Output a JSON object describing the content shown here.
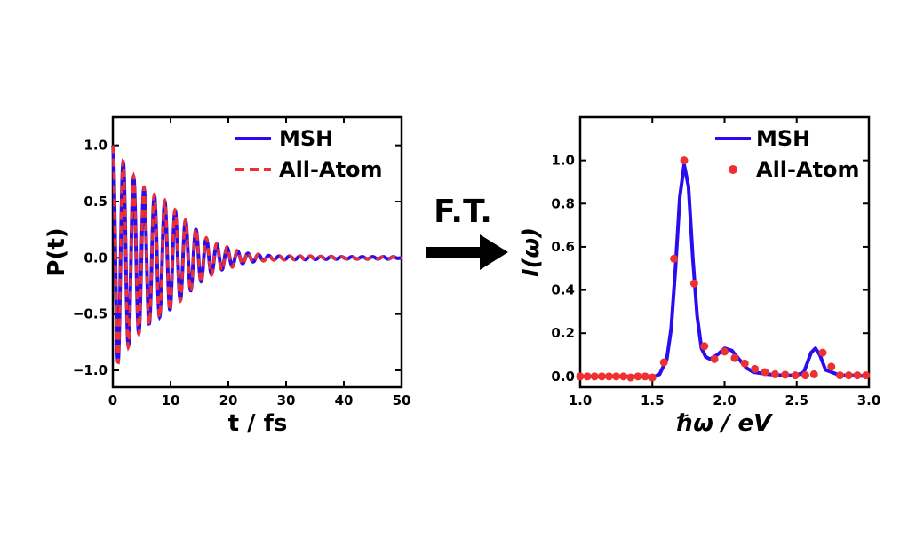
{
  "chart_data": [
    {
      "type": "line",
      "xlabel": "t / fs",
      "ylabel": "P(t)",
      "xlim": [
        0,
        50
      ],
      "ylim": [
        -1.15,
        1.25
      ],
      "xticks": [
        0,
        10,
        20,
        30,
        40,
        50
      ],
      "xtick_labels": [
        "0",
        "10",
        "20",
        "30",
        "40",
        "50"
      ],
      "yticks": [
        -1.0,
        -0.5,
        0.0,
        0.5,
        1.0
      ],
      "ytick_labels": [
        "−1.0",
        "−0.5",
        "0.0",
        "0.5",
        "1.0"
      ],
      "legend_position": "top-right",
      "signal_model": {
        "period_fs": 1.8,
        "decay_time_fs": 11.0,
        "beat_period_fs": 45.0
      },
      "series": [
        {
          "name": "MSH",
          "style": "solid",
          "color": "#2a0cf0",
          "x": [
            0,
            1.8,
            3.6,
            5.4,
            7.2,
            9.0,
            10.8,
            12.6,
            14.4,
            16.2,
            18.0,
            19.8,
            21.6,
            23.4,
            25.2,
            27.0,
            28.8,
            30.6,
            32.4,
            34.2,
            36.0,
            37.8,
            39.6,
            41.4,
            43.2,
            45.0,
            46.8,
            48.6,
            50.0
          ],
          "y": [
            1.0,
            0.85,
            0.72,
            0.62,
            0.55,
            0.5,
            0.42,
            0.33,
            0.25,
            0.17,
            0.12,
            0.09,
            0.06,
            0.04,
            0.03,
            0.02,
            0.015,
            0.015,
            0.015,
            0.015,
            0.012,
            0.012,
            0.01,
            0.01,
            0.01,
            0.01,
            0.01,
            0.01,
            0.0
          ]
        },
        {
          "name": "All-Atom",
          "style": "dashed",
          "color": "#f03030",
          "x": [
            0,
            1.8,
            3.6,
            5.4,
            7.2,
            9.0,
            10.8,
            12.6,
            14.4,
            16.2,
            18.0,
            19.8,
            21.6,
            23.4,
            25.2,
            27.0,
            28.8,
            30.6,
            32.4,
            34.2,
            36.0,
            37.8,
            39.6,
            41.4,
            43.2,
            45.0,
            46.8,
            48.6,
            50.0
          ],
          "y": [
            1.0,
            0.86,
            0.73,
            0.63,
            0.56,
            0.51,
            0.43,
            0.34,
            0.26,
            0.18,
            0.13,
            0.1,
            0.07,
            0.05,
            0.035,
            0.025,
            0.02,
            0.02,
            0.02,
            0.02,
            0.015,
            0.015,
            0.012,
            0.012,
            0.01,
            0.01,
            0.01,
            0.01,
            0.0
          ]
        }
      ]
    },
    {
      "type": "line",
      "xlabel": "ℏω / eV",
      "ylabel": "I(ω)",
      "xlim": [
        1.0,
        3.0
      ],
      "ylim": [
        -0.05,
        1.2
      ],
      "xticks": [
        1.0,
        1.5,
        2.0,
        2.5,
        3.0
      ],
      "xtick_labels": [
        "1.0",
        "1.5",
        "2.0",
        "2.5",
        "3.0"
      ],
      "yticks": [
        0.0,
        0.2,
        0.4,
        0.6,
        0.8,
        1.0
      ],
      "ytick_labels": [
        "0.0",
        "0.2",
        "0.4",
        "0.6",
        "0.8",
        "1.0"
      ],
      "legend_position": "top-right",
      "series": [
        {
          "name": "MSH",
          "style": "solid",
          "color": "#2a0cf0",
          "x": [
            1.0,
            1.1,
            1.2,
            1.3,
            1.4,
            1.5,
            1.55,
            1.6,
            1.63,
            1.66,
            1.69,
            1.72,
            1.75,
            1.78,
            1.81,
            1.84,
            1.87,
            1.9,
            1.95,
            2.0,
            2.05,
            2.1,
            2.15,
            2.2,
            2.3,
            2.4,
            2.5,
            2.55,
            2.6,
            2.63,
            2.66,
            2.7,
            2.8,
            2.9,
            3.0
          ],
          "y": [
            0.0,
            0.0,
            0.0,
            0.0,
            0.0,
            -0.005,
            0.01,
            0.08,
            0.22,
            0.5,
            0.83,
            0.98,
            0.88,
            0.55,
            0.28,
            0.13,
            0.09,
            0.08,
            0.1,
            0.13,
            0.12,
            0.08,
            0.04,
            0.02,
            0.01,
            0.005,
            0.005,
            0.02,
            0.11,
            0.13,
            0.1,
            0.03,
            0.005,
            0.005,
            0.0
          ]
        },
        {
          "name": "All-Atom",
          "style": "points",
          "color": "#f03030",
          "x": [
            1.0,
            1.05,
            1.1,
            1.15,
            1.2,
            1.25,
            1.3,
            1.35,
            1.4,
            1.45,
            1.5,
            1.58,
            1.65,
            1.72,
            1.79,
            1.86,
            1.93,
            2.0,
            2.07,
            2.14,
            2.21,
            2.28,
            2.35,
            2.42,
            2.49,
            2.56,
            2.62,
            2.68,
            2.74,
            2.8,
            2.86,
            2.92,
            2.98
          ],
          "y": [
            0.0,
            0.0,
            0.0,
            0.0,
            0.0,
            0.0,
            0.0,
            -0.005,
            0.0,
            0.0,
            -0.005,
            0.065,
            0.545,
            1.0,
            0.43,
            0.14,
            0.08,
            0.115,
            0.085,
            0.06,
            0.035,
            0.02,
            0.01,
            0.008,
            0.005,
            0.005,
            0.01,
            0.11,
            0.045,
            0.005,
            0.005,
            0.005,
            0.005
          ]
        }
      ]
    }
  ],
  "arrow": {
    "label": "F.T."
  }
}
